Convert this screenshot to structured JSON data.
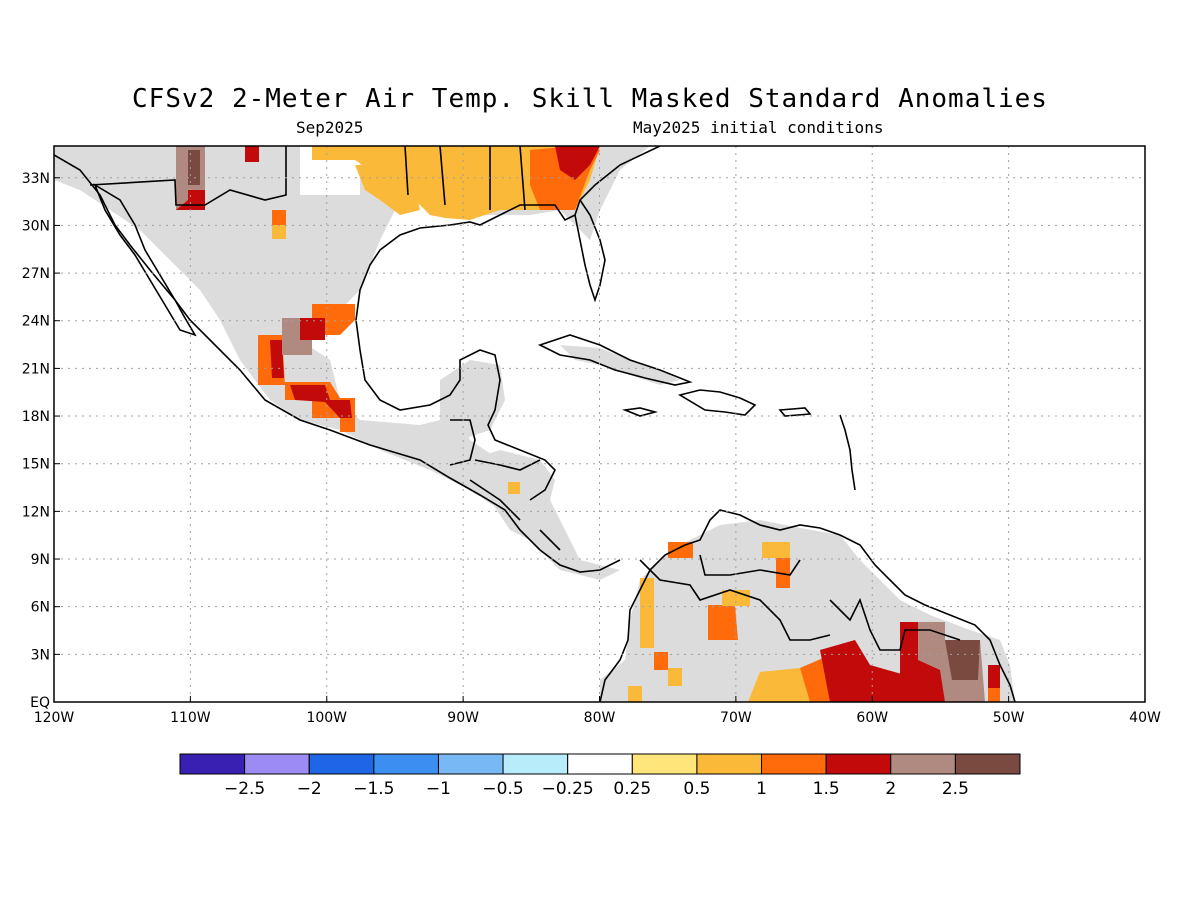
{
  "title": "CFSv2 2-Meter Air Temp. Skill Masked Standard Anomalies",
  "subtitle_left": "Sep2025",
  "subtitle_right": "May2025 initial conditions",
  "map": {
    "lon_range": [
      -120,
      -40
    ],
    "lat_range": [
      0,
      35
    ],
    "lon_ticks": [
      "120W",
      "110W",
      "100W",
      "90W",
      "80W",
      "70W",
      "60W",
      "50W",
      "40W"
    ],
    "lat_ticks": [
      "EQ",
      "3N",
      "6N",
      "9N",
      "12N",
      "15N",
      "18N",
      "21N",
      "24N",
      "27N",
      "30N",
      "33N"
    ],
    "grid": "dotted"
  },
  "colorbar": {
    "colors": [
      "#3a1fb3",
      "#9c8bf2",
      "#1f66e6",
      "#3c8ff0",
      "#78b8f5",
      "#b8ecfa",
      "#ffffff",
      "#ffe57a",
      "#fbb93a",
      "#ff6a0a",
      "#c30a0a",
      "#b08a80",
      "#7a4a40"
    ],
    "labels": [
      "−2.5",
      "−2",
      "−1.5",
      "−1",
      "−0.5",
      "−0.25",
      "0.25",
      "0.5",
      "1",
      "1.5",
      "2",
      "2.5"
    ]
  },
  "legend_colors": {
    "land_masked": "#dcdcdc",
    "ocean": "#ffffff"
  }
}
